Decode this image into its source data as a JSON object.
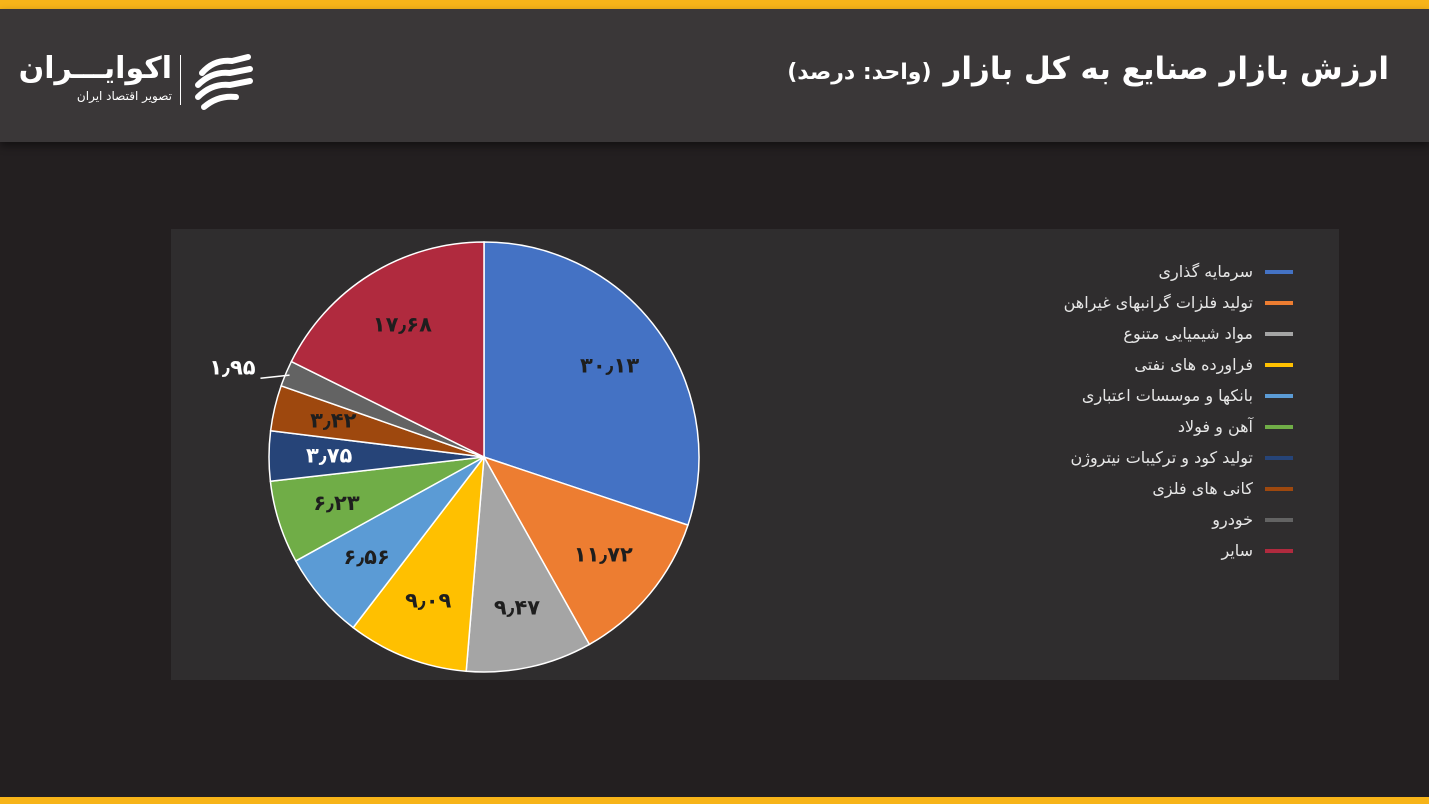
{
  "header": {
    "title": "ارزش بازار صنایع به کل بازار",
    "unit": "(واحد: درصد)",
    "logo_name": "اکوایـــران",
    "logo_tagline": "تصویر اقتصاد ایران"
  },
  "colors": {
    "accent": "#f7b419",
    "background": "#231f20",
    "header": "#3a3738",
    "panel": "#2f2d2e"
  },
  "chart_data": {
    "type": "pie",
    "legend_position": "right",
    "slices": [
      {
        "label": "سرمایه گذاری",
        "value": 30.13,
        "display": "۳۰٫۱۳",
        "color": "#4472c4"
      },
      {
        "label": "تولید فلزات گرانبهای غیراهن",
        "value": 11.72,
        "display": "۱۱٫۷۲",
        "color": "#ed7d31"
      },
      {
        "label": "مواد شیمیایی متنوع",
        "value": 9.47,
        "display": "۹٫۴۷",
        "color": "#a5a5a5"
      },
      {
        "label": "فراورده های نفتی",
        "value": 9.09,
        "display": "۹٫۰۹",
        "color": "#ffc000"
      },
      {
        "label": "بانکها و موسسات اعتباری",
        "value": 6.56,
        "display": "۶٫۵۶",
        "color": "#5b9bd5"
      },
      {
        "label": "آهن و فولاد",
        "value": 6.23,
        "display": "۶٫۲۳",
        "color": "#70ad47"
      },
      {
        "label": "تولید کود و ترکیبات نیتروژن",
        "value": 3.75,
        "display": "۳٫۷۵",
        "color": "#264478"
      },
      {
        "label": "کانی های فلزی",
        "value": 3.42,
        "display": "۳٫۴۲",
        "color": "#9e480e"
      },
      {
        "label": "خودرو",
        "value": 1.95,
        "display": "۱٫۹۵",
        "color": "#636363"
      },
      {
        "label": "سایر",
        "value": 17.68,
        "display": "۱۷٫۶۸",
        "color": "#b02a3e"
      }
    ]
  }
}
